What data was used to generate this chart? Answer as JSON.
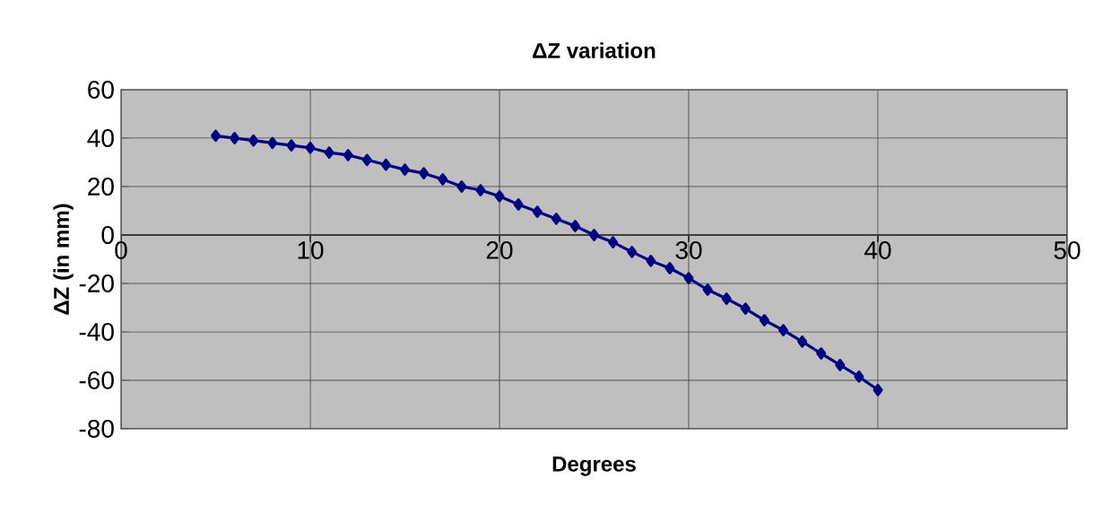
{
  "chart_data": {
    "type": "line",
    "title": "ΔZ variation",
    "xlabel": "Degrees",
    "ylabel": "ΔZ (in mm)",
    "x": [
      5,
      6,
      7,
      8,
      9,
      10,
      11,
      12,
      13,
      14,
      15,
      16,
      17,
      18,
      19,
      20,
      21,
      22,
      23,
      24,
      25,
      26,
      27,
      28,
      29,
      30,
      31,
      32,
      33,
      34,
      35,
      36,
      37,
      38,
      39,
      40
    ],
    "series": [
      {
        "color": "#000080",
        "values": [
          41,
          40,
          39,
          38,
          37,
          36,
          34,
          33,
          31,
          29,
          27,
          25.5,
          23,
          20,
          18.5,
          16,
          12.6,
          9.6,
          6.7,
          3.7,
          0,
          -3,
          -7,
          -10.7,
          -13.7,
          -17.8,
          -22.6,
          -26.3,
          -30.4,
          -35.2,
          -39.3,
          -44,
          -48.9,
          -53.7,
          -58.5,
          -64
        ]
      }
    ],
    "xlim": [
      0,
      50
    ],
    "xticks": [
      0,
      10,
      20,
      30,
      40,
      50
    ],
    "ylim": [
      -80,
      60
    ],
    "yticks": [
      -80,
      -60,
      -40,
      -20,
      0,
      20,
      40,
      60
    ],
    "grid": true,
    "marker": "diamond",
    "line_style": "solid"
  }
}
